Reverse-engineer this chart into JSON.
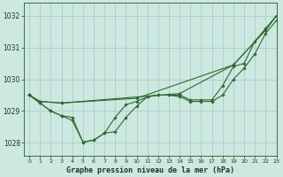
{
  "bg_color": "#cce8e0",
  "grid_color": "#aacfc8",
  "line_color": "#2d6a2d",
  "title": "Graphe pression niveau de la mer (hPa)",
  "xlim": [
    -0.5,
    23
  ],
  "ylim": [
    1027.6,
    1032.4
  ],
  "yticks": [
    1028,
    1029,
    1030,
    1031,
    1032
  ],
  "xticks": [
    0,
    1,
    2,
    3,
    4,
    5,
    6,
    7,
    8,
    9,
    10,
    11,
    12,
    13,
    14,
    15,
    16,
    17,
    18,
    19,
    20,
    21,
    22,
    23
  ],
  "line1_x": [
    0,
    1,
    2,
    3,
    4,
    5,
    6,
    7,
    8,
    9,
    10,
    11,
    12,
    13,
    14,
    15,
    16,
    17,
    18,
    19,
    20,
    21,
    22,
    23
  ],
  "line1_y": [
    1029.5,
    1029.25,
    1029.0,
    1028.85,
    1028.8,
    1028.02,
    1028.08,
    1028.3,
    1028.35,
    1028.8,
    1029.15,
    1029.45,
    1029.5,
    1029.5,
    1029.45,
    1029.3,
    1029.3,
    1029.3,
    1029.5,
    1030.0,
    1030.35,
    1030.8,
    1031.45,
    1031.85
  ],
  "line2_x": [
    0,
    1,
    2,
    3,
    4,
    5,
    6,
    7,
    8,
    9,
    10,
    11,
    12,
    13,
    14,
    15,
    16,
    17,
    18,
    19,
    20,
    21,
    22,
    23
  ],
  "line2_y": [
    1029.5,
    1029.25,
    1029.0,
    1028.85,
    1028.7,
    1028.02,
    1028.08,
    1028.3,
    1028.8,
    1029.2,
    1029.3,
    1029.45,
    1029.5,
    1029.5,
    1029.5,
    1029.35,
    1029.35,
    1029.35,
    1029.8,
    1030.4,
    1030.5,
    1031.2,
    1031.6,
    1032.0
  ],
  "line3_x": [
    0,
    1,
    3,
    10,
    19,
    22,
    23
  ],
  "line3_y": [
    1029.5,
    1029.3,
    1029.25,
    1029.4,
    1030.45,
    1031.55,
    1032.0
  ],
  "line4_x": [
    0,
    1,
    3,
    14,
    19,
    22,
    23
  ],
  "line4_y": [
    1029.5,
    1029.3,
    1029.25,
    1029.55,
    1030.45,
    1031.55,
    1032.0
  ]
}
